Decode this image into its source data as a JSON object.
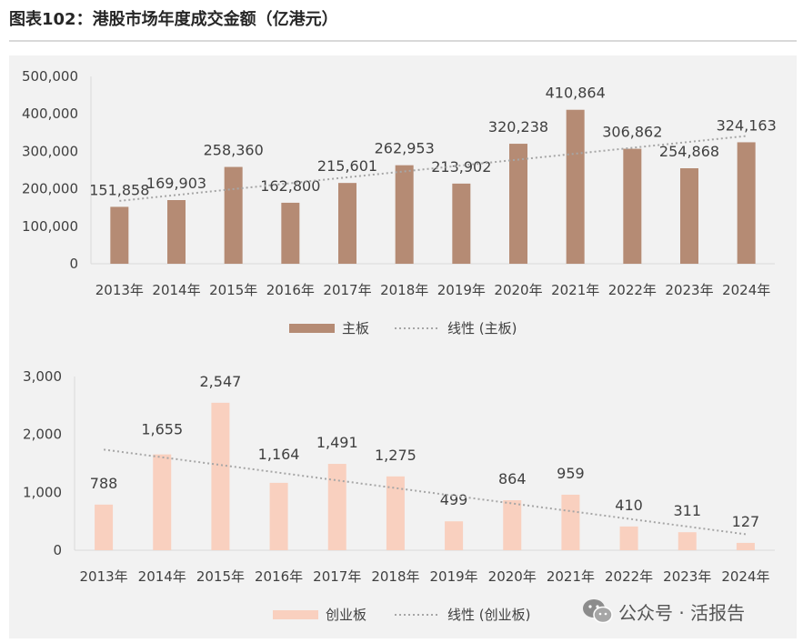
{
  "title": "图表102：港股市场年度成交金额（亿港元）",
  "watermark": "公众号 · 活报告",
  "chart_data": [
    {
      "type": "bar",
      "categories": [
        "2013年",
        "2014年",
        "2015年",
        "2016年",
        "2017年",
        "2018年",
        "2019年",
        "2020年",
        "2021年",
        "2022年",
        "2023年",
        "2024年"
      ],
      "series": [
        {
          "name": "主板",
          "values": [
            151858,
            169903,
            258360,
            162800,
            215601,
            262953,
            213902,
            320238,
            410864,
            306862,
            254868,
            324163
          ],
          "labels": [
            "151,858",
            "169,903",
            "258,360",
            "162,800",
            "215,601",
            "262,953",
            "213,902",
            "320,238",
            "410,864",
            "306,862",
            "254,868",
            "324,163"
          ],
          "color": "#b58b74"
        }
      ],
      "trendline": {
        "name": "线性 (主板)",
        "type": "linear",
        "color": "#a6a6a6"
      },
      "ylim": [
        0,
        500000
      ],
      "yticks": [
        0,
        100000,
        200000,
        300000,
        400000,
        500000
      ],
      "ytick_labels": [
        "0",
        "100,000",
        "200,000",
        "300,000",
        "400,000",
        "500,000"
      ],
      "legend_position": "bottom",
      "grid": false
    },
    {
      "type": "bar",
      "categories": [
        "2013年",
        "2014年",
        "2015年",
        "2016年",
        "2017年",
        "2018年",
        "2019年",
        "2020年",
        "2021年",
        "2022年",
        "2023年",
        "2024年"
      ],
      "series": [
        {
          "name": "创业板",
          "values": [
            788,
            1655,
            2547,
            1164,
            1491,
            1275,
            499,
            864,
            959,
            410,
            311,
            127
          ],
          "labels": [
            "788",
            "1,655",
            "2,547",
            "1,164",
            "1,491",
            "1,275",
            "499",
            "864",
            "959",
            "410",
            "311",
            "127"
          ],
          "color": "#f9d0bf"
        }
      ],
      "trendline": {
        "name": "线性 (创业板)",
        "type": "linear",
        "color": "#a6a6a6"
      },
      "ylim": [
        0,
        3000
      ],
      "yticks": [
        0,
        1000,
        2000,
        3000
      ],
      "ytick_labels": [
        "0",
        "1,000",
        "2,000",
        "3,000"
      ],
      "legend_position": "bottom",
      "grid": false
    }
  ]
}
